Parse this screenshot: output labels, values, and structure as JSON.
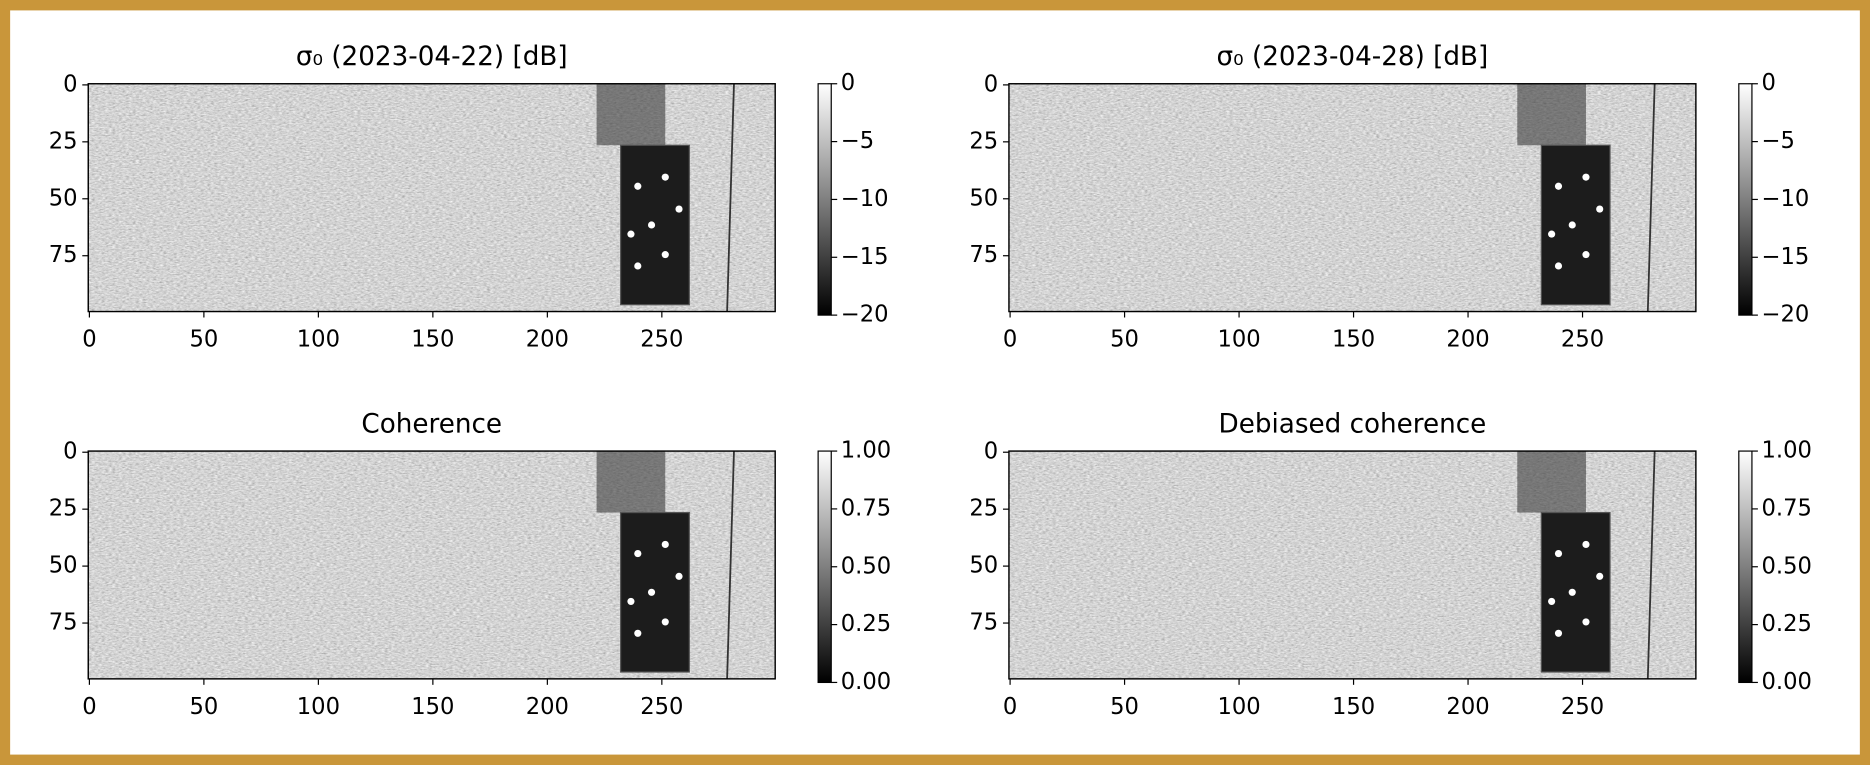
{
  "chart_data": [
    {
      "type": "image",
      "title": "σ₀ (2023-04-22) [dB]",
      "xlim": [
        -0.5,
        299.5
      ],
      "ylim": [
        99.5,
        -0.5
      ],
      "xticks": [
        0,
        50,
        100,
        150,
        200,
        250
      ],
      "yticks": [
        0,
        25,
        50,
        75
      ],
      "colorbar": {
        "cmap": "gray",
        "lim": [
          -20,
          0
        ],
        "ticks": [
          0,
          {
            "value": -5,
            "label": "−5"
          },
          {
            "value": -10,
            "label": "−10"
          },
          {
            "value": -15,
            "label": "−15"
          },
          {
            "value": -20,
            "label": "−20"
          }
        ]
      }
    },
    {
      "type": "image",
      "title": "σ₀ (2023-04-28) [dB]",
      "xlim": [
        -0.5,
        299.5
      ],
      "ylim": [
        99.5,
        -0.5
      ],
      "xticks": [
        0,
        50,
        100,
        150,
        200,
        250
      ],
      "yticks": [
        0,
        25,
        50,
        75
      ],
      "colorbar": {
        "cmap": "gray",
        "lim": [
          -20,
          0
        ],
        "ticks": [
          0,
          {
            "value": -5,
            "label": "−5"
          },
          {
            "value": -10,
            "label": "−10"
          },
          {
            "value": -15,
            "label": "−15"
          },
          {
            "value": -20,
            "label": "−20"
          }
        ]
      }
    },
    {
      "type": "image",
      "title": "Coherence",
      "xlim": [
        -0.5,
        299.5
      ],
      "ylim": [
        99.5,
        -0.5
      ],
      "xticks": [
        0,
        50,
        100,
        150,
        200,
        250
      ],
      "yticks": [
        0,
        25,
        50,
        75
      ],
      "colorbar": {
        "cmap": "gray",
        "lim": [
          0,
          1
        ],
        "ticks": [
          {
            "value": 1,
            "label": "1.00"
          },
          0.75,
          {
            "value": 0.5,
            "label": "0.50"
          },
          0.25,
          {
            "value": 0,
            "label": "0.00"
          }
        ]
      }
    },
    {
      "type": "image",
      "title": "Debiased coherence",
      "xlim": [
        -0.5,
        299.5
      ],
      "ylim": [
        99.5,
        -0.5
      ],
      "xticks": [
        0,
        50,
        100,
        150,
        200,
        250
      ],
      "yticks": [
        0,
        25,
        50,
        75
      ],
      "colorbar": {
        "cmap": "gray",
        "lim": [
          0,
          1
        ],
        "ticks": [
          {
            "value": 1,
            "label": "1.00"
          },
          0.75,
          {
            "value": 0.5,
            "label": "0.50"
          },
          0.25,
          {
            "value": 0,
            "label": "0.00"
          }
        ]
      }
    }
  ]
}
